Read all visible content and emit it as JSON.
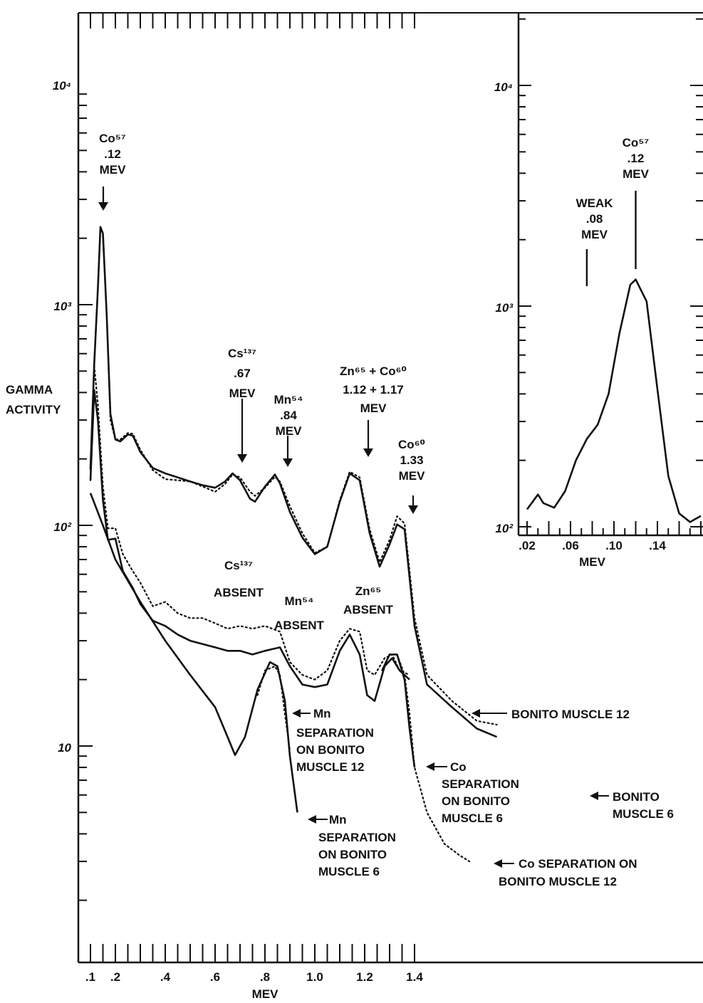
{
  "chart_data": [
    {
      "type": "line",
      "title": "",
      "xlabel": "MEV",
      "ylabel": "GAMMA ACTIVITY",
      "xscale": "linear",
      "yscale": "log",
      "xlim": [
        0.1,
        1.8
      ],
      "ylim": [
        1.2,
        20000
      ],
      "x_ticks": [
        ".1",
        ".2",
        ".4",
        ".6",
        ".8",
        "1.0",
        "1.2",
        "1.4"
      ],
      "y_ticks": [
        "10",
        "10²",
        "10³",
        "10⁴"
      ],
      "series": [
        {
          "name": "BONITO MUSCLE 12",
          "style": "dotted",
          "points": [
            [
              0.1,
              180
            ],
            [
              0.115,
              540
            ],
            [
              0.13,
              1200
            ],
            [
              0.14,
              2250
            ],
            [
              0.15,
              2100
            ],
            [
              0.165,
              900
            ],
            [
              0.18,
              300
            ],
            [
              0.2,
              245
            ],
            [
              0.22,
              245
            ],
            [
              0.25,
              262
            ],
            [
              0.27,
              260
            ],
            [
              0.3,
              220
            ],
            [
              0.35,
              178
            ],
            [
              0.4,
              162
            ],
            [
              0.45,
              160
            ],
            [
              0.5,
              158
            ],
            [
              0.55,
              150
            ],
            [
              0.6,
              142
            ],
            [
              0.64,
              154
            ],
            [
              0.67,
              170
            ],
            [
              0.7,
              165
            ],
            [
              0.74,
              142
            ],
            [
              0.76,
              136
            ],
            [
              0.8,
              148
            ],
            [
              0.84,
              166
            ],
            [
              0.86,
              158
            ],
            [
              0.9,
              122
            ],
            [
              0.95,
              92
            ],
            [
              1.0,
              75
            ],
            [
              1.05,
              80
            ],
            [
              1.1,
              130
            ],
            [
              1.14,
              175
            ],
            [
              1.18,
              165
            ],
            [
              1.22,
              96
            ],
            [
              1.26,
              68
            ],
            [
              1.3,
              86
            ],
            [
              1.33,
              110
            ],
            [
              1.36,
              102
            ],
            [
              1.4,
              38
            ],
            [
              1.45,
              21
            ],
            [
              1.55,
              16
            ],
            [
              1.65,
              13
            ],
            [
              1.73,
              12.5
            ]
          ]
        },
        {
          "name": "BONITO MUSCLE 6",
          "style": "solid",
          "points": [
            [
              0.1,
              180
            ],
            [
              0.115,
              540
            ],
            [
              0.13,
              1200
            ],
            [
              0.14,
              2250
            ],
            [
              0.15,
              2100
            ],
            [
              0.165,
              900
            ],
            [
              0.18,
              320
            ],
            [
              0.2,
              245
            ],
            [
              0.22,
              240
            ],
            [
              0.25,
              258
            ],
            [
              0.27,
              255
            ],
            [
              0.3,
              215
            ],
            [
              0.35,
              182
            ],
            [
              0.4,
              172
            ],
            [
              0.45,
              165
            ],
            [
              0.5,
              158
            ],
            [
              0.55,
              152
            ],
            [
              0.6,
              148
            ],
            [
              0.64,
              158
            ],
            [
              0.67,
              172
            ],
            [
              0.7,
              160
            ],
            [
              0.74,
              132
            ],
            [
              0.76,
              128
            ],
            [
              0.8,
              150
            ],
            [
              0.84,
              170
            ],
            [
              0.86,
              155
            ],
            [
              0.9,
              115
            ],
            [
              0.95,
              88
            ],
            [
              1.0,
              74
            ],
            [
              1.05,
              80
            ],
            [
              1.1,
              128
            ],
            [
              1.14,
              172
            ],
            [
              1.18,
              160
            ],
            [
              1.22,
              92
            ],
            [
              1.26,
              65
            ],
            [
              1.3,
              82
            ],
            [
              1.33,
              101
            ],
            [
              1.36,
              96
            ],
            [
              1.4,
              35
            ],
            [
              1.45,
              19
            ],
            [
              1.55,
              15
            ],
            [
              1.65,
              12
            ],
            [
              1.73,
              11
            ]
          ]
        },
        {
          "name": "Cs137 ABSENT, Mn54 ABSENT, Zn65 ABSENT (BONITO MUSCLE 12)",
          "style": "dotted",
          "points": [
            [
              0.1,
              160
            ],
            [
              0.115,
              530
            ],
            [
              0.13,
              350
            ],
            [
              0.15,
              150
            ],
            [
              0.17,
              97
            ],
            [
              0.2,
              97
            ],
            [
              0.23,
              74
            ],
            [
              0.27,
              62
            ],
            [
              0.3,
              55
            ],
            [
              0.35,
              43
            ],
            [
              0.4,
              45
            ],
            [
              0.45,
              40
            ],
            [
              0.5,
              38
            ],
            [
              0.55,
              38
            ],
            [
              0.6,
              36
            ],
            [
              0.65,
              34
            ],
            [
              0.7,
              35
            ],
            [
              0.75,
              34
            ],
            [
              0.8,
              35
            ],
            [
              0.86,
              33
            ],
            [
              0.9,
              24
            ],
            [
              0.95,
              21
            ],
            [
              1.0,
              20
            ],
            [
              1.05,
              22
            ],
            [
              1.1,
              30
            ],
            [
              1.14,
              34
            ],
            [
              1.18,
              33
            ],
            [
              1.21,
              22
            ],
            [
              1.24,
              21
            ],
            [
              1.28,
              25
            ],
            [
              1.31,
              26
            ],
            [
              1.34,
              22
            ],
            [
              1.38,
              21
            ]
          ]
        },
        {
          "name": "Cs137 ABSENT, Mn54 ABSENT, Zn65 ABSENT (BONITO MUSCLE 6)",
          "style": "solid",
          "points": [
            [
              0.1,
              160
            ],
            [
              0.115,
              410
            ],
            [
              0.13,
              300
            ],
            [
              0.15,
              130
            ],
            [
              0.17,
              86
            ],
            [
              0.2,
              87
            ],
            [
              0.23,
              62
            ],
            [
              0.27,
              52
            ],
            [
              0.3,
              44
            ],
            [
              0.35,
              37
            ],
            [
              0.4,
              35
            ],
            [
              0.45,
              32
            ],
            [
              0.5,
              30
            ],
            [
              0.55,
              29
            ],
            [
              0.6,
              28
            ],
            [
              0.65,
              27
            ],
            [
              0.7,
              27
            ],
            [
              0.75,
              26
            ],
            [
              0.8,
              27
            ],
            [
              0.86,
              28
            ],
            [
              0.9,
              23
            ],
            [
              0.95,
              19
            ],
            [
              1.0,
              18.5
            ],
            [
              1.05,
              19
            ],
            [
              1.1,
              27
            ],
            [
              1.14,
              32
            ],
            [
              1.18,
              26
            ],
            [
              1.21,
              17
            ],
            [
              1.24,
              16
            ],
            [
              1.28,
              23
            ],
            [
              1.31,
              25
            ],
            [
              1.34,
              22
            ],
            [
              1.38,
              20
            ]
          ]
        },
        {
          "name": "Mn SEPARATION ON BONITO MUSCLE 12",
          "style": "dotted",
          "points": [
            [
              0.77,
              17
            ],
            [
              0.8,
              22
            ],
            [
              0.84,
              23
            ],
            [
              0.86,
              21
            ],
            [
              0.88,
              14
            ],
            [
              0.9,
              9.5
            ]
          ]
        },
        {
          "name": "Mn SEPARATION ON BONITO MUSCLE 6",
          "style": "solid",
          "points": [
            [
              0.1,
              140
            ],
            [
              0.15,
              100
            ],
            [
              0.2,
              70
            ],
            [
              0.3,
              45
            ],
            [
              0.4,
              30
            ],
            [
              0.5,
              21
            ],
            [
              0.6,
              15
            ],
            [
              0.65,
              11
            ],
            [
              0.68,
              9.1
            ],
            [
              0.72,
              11
            ],
            [
              0.77,
              18
            ],
            [
              0.82,
              24
            ],
            [
              0.85,
              23
            ],
            [
              0.88,
              16
            ],
            [
              0.9,
              9
            ],
            [
              0.93,
              5
            ]
          ]
        },
        {
          "name": "Co SEPARATION ON BONITO MUSCLE 12",
          "style": "dotted",
          "points": [
            [
              1.27,
              22
            ],
            [
              1.3,
              26
            ],
            [
              1.33,
              26
            ],
            [
              1.36,
              21
            ],
            [
              1.38,
              14
            ],
            [
              1.4,
              8
            ],
            [
              1.45,
              5
            ],
            [
              1.52,
              3.6
            ],
            [
              1.58,
              3.2
            ],
            [
              1.62,
              3
            ]
          ]
        },
        {
          "name": "Co SEPARATION ON BONITO MUSCLE 6",
          "style": "solid",
          "points": [
            [
              1.27,
              22
            ],
            [
              1.3,
              26
            ],
            [
              1.33,
              26
            ],
            [
              1.36,
              20
            ],
            [
              1.38,
              12
            ],
            [
              1.4,
              8
            ]
          ]
        }
      ],
      "annotations": [
        {
          "text": "Co⁵⁷ .12 MEV",
          "x": 0.14
        },
        {
          "text": "Cs¹³⁷ .67 MEV",
          "x": 0.67
        },
        {
          "text": "Mn⁵⁴ .84 MEV",
          "x": 0.84
        },
        {
          "text": "Zn⁶⁵ + Co⁶⁰ 1.12 + 1.17 MEV",
          "x": 1.15
        },
        {
          "text": "Co⁶⁰ 1.33 MEV",
          "x": 1.33
        },
        {
          "text": "Cs¹³⁷ ABSENT"
        },
        {
          "text": "Mn⁵⁴ ABSENT"
        },
        {
          "text": "Zn⁶⁵ ABSENT"
        },
        {
          "text": "BONITO MUSCLE 12"
        },
        {
          "text": "BONITO MUSCLE 6"
        },
        {
          "text": "Mn SEPARATION ON BONITO MUSCLE 12"
        },
        {
          "text": "Mn SEPARATION ON BONITO MUSCLE 6"
        },
        {
          "text": "Co SEPARATION ON BONITO MUSCLE 6"
        },
        {
          "text": "Co SEPARATION ON BONITO MUSCLE 12"
        }
      ]
    },
    {
      "type": "line",
      "title": "",
      "xlabel": "MEV",
      "ylabel": "",
      "xscale": "linear",
      "yscale": "log",
      "xlim": [
        0.02,
        0.18
      ],
      "ylim": [
        100,
        20000
      ],
      "x_ticks": [
        ".02",
        ".06",
        ".10",
        ".14"
      ],
      "y_ticks": [
        "10²",
        "10³",
        "10⁴"
      ],
      "series": [
        {
          "name": "",
          "style": "solid",
          "points": [
            [
              0.02,
              120
            ],
            [
              0.03,
              140
            ],
            [
              0.035,
              128
            ],
            [
              0.045,
              122
            ],
            [
              0.055,
              145
            ],
            [
              0.065,
              200
            ],
            [
              0.075,
              250
            ],
            [
              0.085,
              290
            ],
            [
              0.095,
              400
            ],
            [
              0.105,
              750
            ],
            [
              0.115,
              1250
            ],
            [
              0.12,
              1320
            ],
            [
              0.13,
              1050
            ],
            [
              0.14,
              420
            ],
            [
              0.15,
              170
            ],
            [
              0.16,
              115
            ],
            [
              0.17,
              105
            ],
            [
              0.18,
              112
            ]
          ]
        }
      ],
      "annotations": [
        {
          "text": "Co⁵⁷ .12 MEV",
          "x": 0.12
        },
        {
          "text": "WEAK .08 MEV",
          "x": 0.08
        }
      ]
    }
  ],
  "labels": {
    "yaxis_main": [
      "GAMMA",
      "ACTIVITY"
    ],
    "xaxis_main": "MEV",
    "xaxis_inset": "MEV",
    "co57_main": [
      "Co⁵⁷",
      ".12",
      "MEV"
    ],
    "cs137": [
      "Cs¹³⁷",
      ".67",
      "MEV"
    ],
    "mn54": [
      "Mn⁵⁴",
      ".84",
      "MEV"
    ],
    "znco": [
      "Zn⁶⁵ + Co⁶⁰",
      "1.12 + 1.17",
      "MEV"
    ],
    "co60": [
      "Co⁶⁰",
      "1.33",
      "MEV"
    ],
    "cs_absent": [
      "Cs¹³⁷",
      "ABSENT"
    ],
    "mn_absent": [
      "Mn⁵⁴",
      "ABSENT"
    ],
    "zn_absent": [
      "Zn⁶⁵",
      "ABSENT"
    ],
    "bonito12": "BONITO MUSCLE 12",
    "bonito6": [
      "BONITO",
      "MUSCLE 6"
    ],
    "mn_sep12": [
      "Mn",
      "SEPARATION",
      "ON BONITO",
      "MUSCLE 12"
    ],
    "mn_sep6": [
      "Mn",
      "SEPARATION",
      "ON BONITO",
      "MUSCLE 6"
    ],
    "co_sep6": [
      "Co",
      "SEPARATION",
      "ON BONITO",
      "MUSCLE 6"
    ],
    "co_sep12": [
      "Co SEPARATION ON",
      "BONITO MUSCLE 12"
    ],
    "inset_co57": [
      "Co⁵⁷",
      ".12",
      "MEV"
    ],
    "inset_weak": [
      "WEAK",
      ".08",
      "MEV"
    ]
  }
}
